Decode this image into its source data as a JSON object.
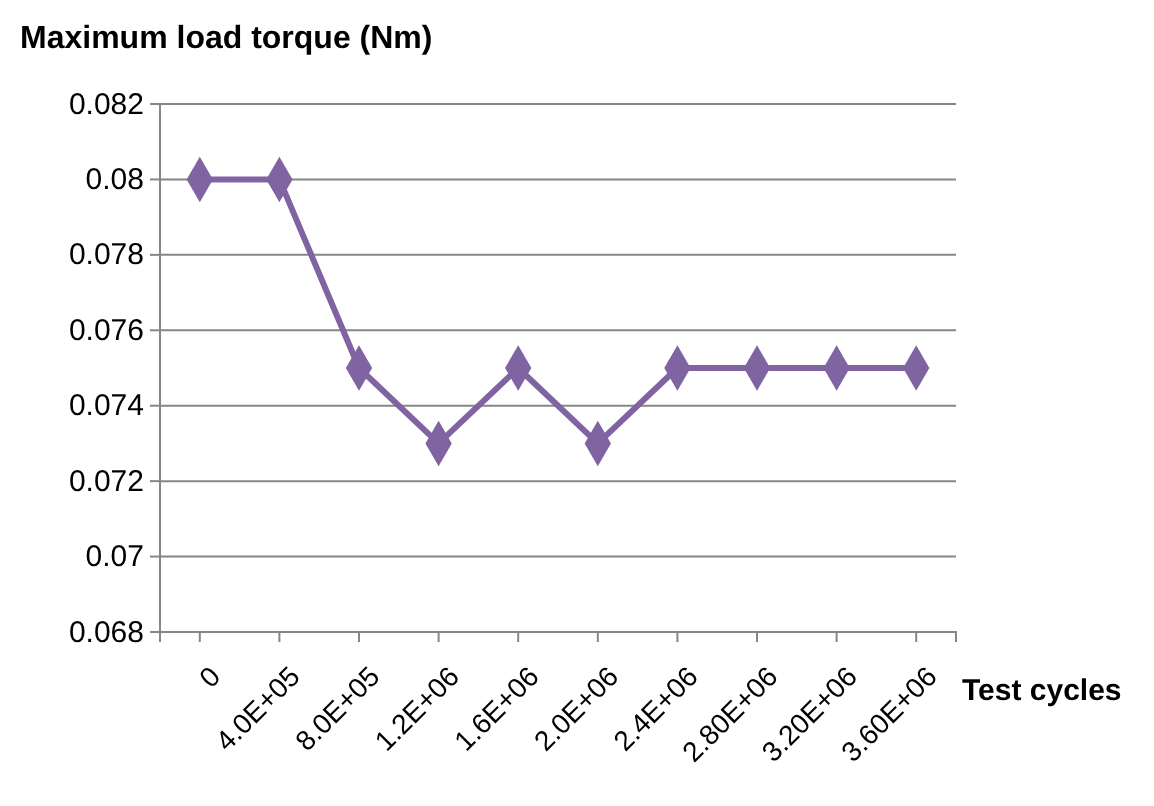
{
  "chart_data": {
    "type": "line",
    "title": "Maximum load torque (Nm)",
    "xlabel": "Test cycles",
    "categories": [
      "0",
      "4.0E+05",
      "8.0E+05",
      "1.2E+06",
      "1.6E+06",
      "2.0E+06",
      "2.4E+06",
      "2.80E+06",
      "3.20E+06",
      "3.60E+06"
    ],
    "series": [
      {
        "color": "#8064a2",
        "values": [
          0.08,
          0.08,
          0.075,
          0.073,
          0.075,
          0.073,
          0.075,
          0.075,
          0.075,
          0.075
        ]
      }
    ],
    "ylim": [
      0.068,
      0.082
    ],
    "yticks": [
      0.068,
      0.07,
      0.072,
      0.074,
      0.076,
      0.078,
      0.08,
      0.082
    ],
    "grid": "y",
    "marker": "diamond",
    "line_style": "solid"
  }
}
